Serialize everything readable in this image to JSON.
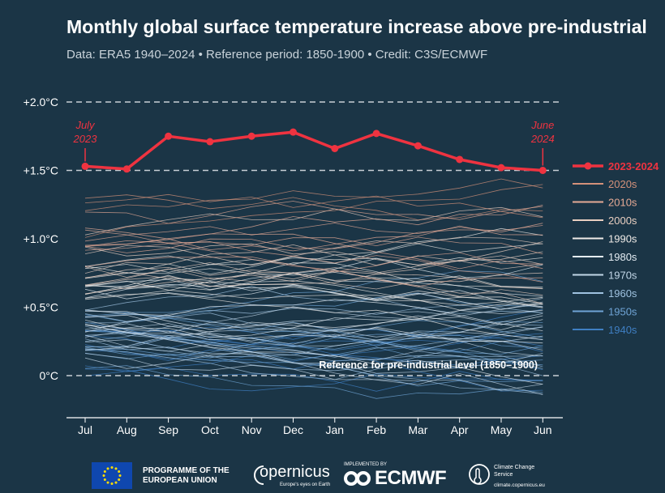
{
  "header": {
    "title": "Monthly global surface temperature increase above pre-industrial",
    "subtitle": "Data: ERA5 1940–2024 • Reference period: 1850-1900 • Credit: C3S/ECMWF"
  },
  "chart_data": {
    "type": "line",
    "title": "Monthly global surface temperature increase above pre-industrial",
    "categories": [
      "Jul",
      "Aug",
      "Sep",
      "Oct",
      "Nov",
      "Dec",
      "Jan",
      "Feb",
      "Mar",
      "Apr",
      "May",
      "Jun"
    ],
    "ylim": [
      -0.3,
      2.0
    ],
    "y_ticks": [
      {
        "value": 2.0,
        "label": "+2.0°C"
      },
      {
        "value": 1.5,
        "label": "+1.5°C"
      },
      {
        "value": 1.0,
        "label": "+1.0°C"
      },
      {
        "value": 0.5,
        "label": "+0.5°C"
      },
      {
        "value": 0.0,
        "label": "0°C"
      }
    ],
    "dashed_reference_lines": [
      2.0,
      1.5,
      0.0
    ],
    "grid": false,
    "legend_position": "right",
    "highlight_series": {
      "name": "2023-2024",
      "color": "#ef3340",
      "values": [
        1.53,
        1.51,
        1.75,
        1.71,
        1.75,
        1.78,
        1.66,
        1.77,
        1.68,
        1.58,
        1.52,
        1.5
      ]
    },
    "background_series": [
      {
        "name": "2020s",
        "color": "#d4917a"
      },
      {
        "name": "2010s",
        "color": "#e6aa95"
      },
      {
        "name": "2000s",
        "color": "#e9cfc1"
      },
      {
        "name": "1990s",
        "color": "#f0ece8"
      },
      {
        "name": "1980s",
        "color": "#e4ecf3"
      },
      {
        "name": "1970s",
        "color": "#c2d6e7"
      },
      {
        "name": "1960s",
        "color": "#9fc2e0"
      },
      {
        "name": "1950s",
        "color": "#6fa4d6"
      },
      {
        "name": "1940s",
        "color": "#3f7fc3"
      }
    ],
    "annotations": [
      {
        "text": "July\n2023",
        "color": "#ef3340"
      },
      {
        "text": "June\n2024",
        "color": "#ef3340"
      },
      {
        "text": "Reference for pre-industrial level (1850–1900)",
        "color": "#ffffff"
      }
    ]
  },
  "footer": {
    "eu_text": "PROGRAMME OF THE EUROPEAN UNION",
    "copernicus_name": "opernicus",
    "copernicus_tagline": "Europe's eyes on Earth",
    "ecmwf_implemented": "IMPLEMENTED BY",
    "ecmwf_name": "ECMWF",
    "ccs_name": "Climate Change Service",
    "ccs_url": "climate.copernicus.eu"
  },
  "colors": {
    "background": "#1b3546",
    "highlight": "#ef3340",
    "axis": "#ffffff"
  }
}
